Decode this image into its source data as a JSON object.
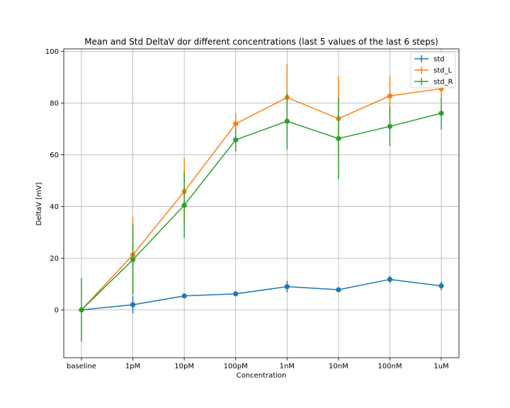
{
  "chart_data": {
    "type": "line",
    "title": "Mean and Std DeltaV dor different concentrations (last 5 values of the last 6 steps)",
    "xlabel": "Concentration",
    "ylabel": "DeltaV [mV]",
    "categories": [
      "baseline",
      "1pM",
      "10pM",
      "100pM",
      "1nM",
      "10nM",
      "100nM",
      "1uM"
    ],
    "ylim": [
      -18.5,
      101
    ],
    "yticks": [
      0,
      20,
      40,
      60,
      80,
      100
    ],
    "grid": true,
    "legend_position": "top-right",
    "series": [
      {
        "name": "std",
        "color": "#1f77b4",
        "values": [
          0,
          2,
          5.4,
          6.2,
          9,
          7.8,
          11.8,
          9.3
        ],
        "errors": [
          0.3,
          3.4,
          0.6,
          0.7,
          2.2,
          0.9,
          1.4,
          1.7
        ]
      },
      {
        "name": "std_L",
        "color": "#ff7f0e",
        "values": [
          0,
          21.3,
          45.8,
          72,
          82.2,
          74,
          82.8,
          85.6
        ],
        "errors": [
          0.4,
          14.7,
          13,
          4.2,
          12.8,
          16.4,
          7.8,
          3
        ]
      },
      {
        "name": "std_R",
        "color": "#2ca02c",
        "values": [
          0,
          19.4,
          40.5,
          65.8,
          73,
          66.3,
          71,
          76.1
        ],
        "errors": [
          12.3,
          13.6,
          12.6,
          4.5,
          11,
          15.8,
          7.6,
          6.3
        ]
      }
    ]
  }
}
